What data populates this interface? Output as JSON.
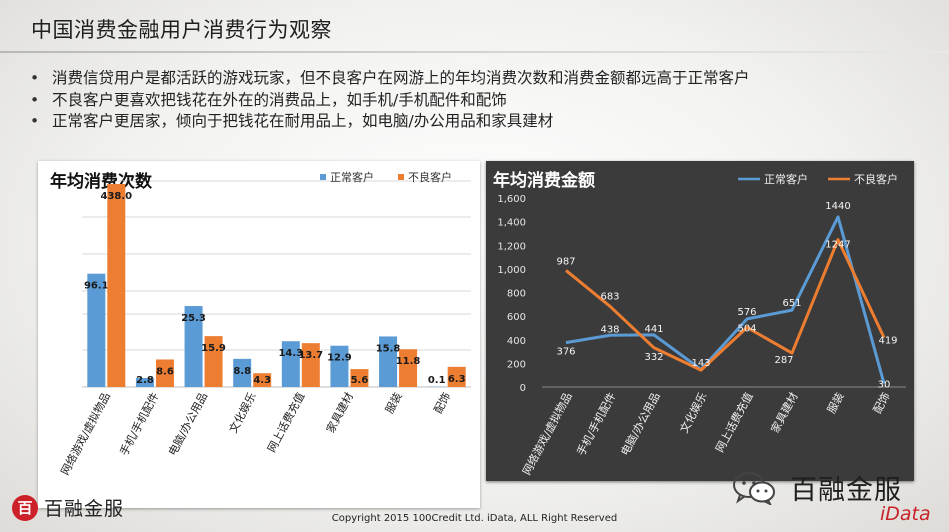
{
  "page": {
    "title": "中国消费金融用户消费行为观察",
    "bullets": [
      "消费信贷用户是都活跃的游戏玩家，但不良客户在网游上的年均消费次数和消费金额都远高于正常客户",
      "不良客户更喜欢把钱花在外在的消费品上，如手机/手机配件和配饰",
      "正常客户更居家，倾向于把钱花在耐用品上，如电脑/办公用品和家具建材"
    ],
    "logo_text": "百融金服",
    "logo_mark": "百",
    "copyright": "Copyright 2015 100Credit Ltd. iData, ALL Right Reserved",
    "wechat_text": "百融金服",
    "idata_label": "iData"
  },
  "colors": {
    "normal": "#5b9bd5",
    "bad": "#ed7d31",
    "dark_panel": "#3b3b3b",
    "brand_red": "#cc2128"
  },
  "chart_data": [
    {
      "type": "bar",
      "title": "年均消费次数",
      "categories": [
        "网络游戏/虚拟物品",
        "手机/手机配件",
        "电脑/办公用品",
        "文化娱乐",
        "网上话费充值",
        "家具建材",
        "服装",
        "配饰"
      ],
      "series": [
        {
          "name": "正常客户",
          "values": [
            96.1,
            2.8,
            25.3,
            8.8,
            14.3,
            12.9,
            15.8,
            0.1
          ]
        },
        {
          "name": "不良客户",
          "values": [
            438.0,
            8.6,
            15.9,
            4.3,
            13.7,
            5.6,
            11.8,
            6.3
          ]
        }
      ],
      "value_labels": {
        "正常客户": [
          "96.1",
          "2.8",
          "25.3",
          "8.8",
          "14.3",
          "12.9",
          "15.8",
          "0.1"
        ],
        "不良客户": [
          "438.0",
          "8.6",
          "15.9",
          "4.3",
          "13.7",
          "5.6",
          "11.8",
          "6.3"
        ]
      },
      "legend": "top-right",
      "grid": true,
      "axis_scale": "broken"
    },
    {
      "type": "line",
      "title": "年均消费金额",
      "categories": [
        "网络游戏/虚拟物品",
        "手机/手机配件",
        "电脑/办公用品",
        "文化娱乐",
        "网上话费充值",
        "家具建材",
        "服装",
        "配饰"
      ],
      "series": [
        {
          "name": "正常客户",
          "values": [
            376,
            438,
            441,
            148,
            576,
            651,
            1440,
            30
          ]
        },
        {
          "name": "不良客户",
          "values": [
            987,
            683,
            332,
            143,
            504,
            287,
            1247,
            419
          ]
        }
      ],
      "value_labels": {
        "正常客户": [
          "376",
          "438",
          "441",
          "",
          "576",
          "651",
          "1440",
          "30"
        ],
        "不良客户": [
          "987",
          "683",
          "332",
          "143",
          "504",
          "287",
          "1247",
          "419"
        ]
      },
      "y_ticks": [
        "0",
        "200",
        "400",
        "600",
        "800",
        "1,000",
        "1,200",
        "1,400",
        "1,600"
      ],
      "ylim": [
        0,
        1600
      ],
      "legend": "top-right",
      "grid": false
    }
  ]
}
